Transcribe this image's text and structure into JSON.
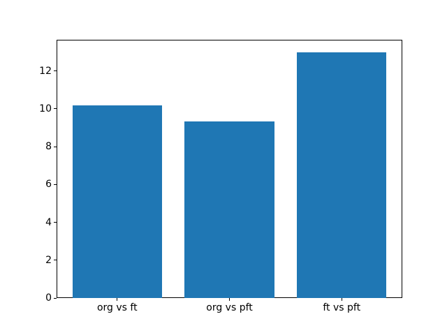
{
  "figure": {
    "background": "#ffffff"
  },
  "chart_data": {
    "type": "bar",
    "title": "",
    "xlabel": "",
    "ylabel": "",
    "categories": [
      "org vs ft",
      "org vs pft",
      "ft vs pft"
    ],
    "values": [
      10.2,
      9.35,
      13.0
    ],
    "x_positions": [
      0,
      1,
      2
    ],
    "xlim": [
      -0.54,
      2.54
    ],
    "ylim": [
      0,
      13.65
    ],
    "yticks": [
      0,
      2,
      4,
      6,
      8,
      10,
      12
    ],
    "bar_width_fraction": 0.8,
    "bar_color": "#1f77b4",
    "axis_color": "#000000",
    "grid": false,
    "legend": false
  }
}
